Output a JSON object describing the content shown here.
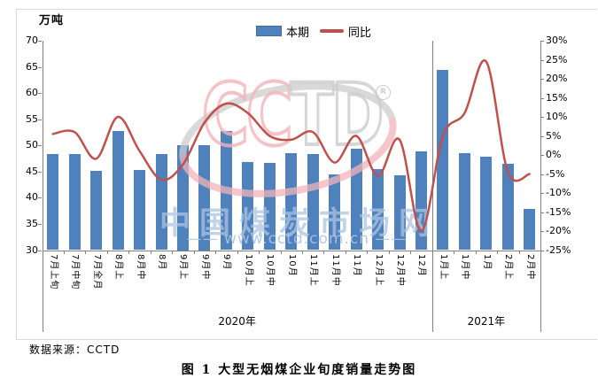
{
  "chart": {
    "y_left_title": "万吨",
    "legend": [
      {
        "label": "本期",
        "type": "bar",
        "color": "#4f81bd"
      },
      {
        "label": "同比",
        "type": "line",
        "color": "#c0504d"
      }
    ],
    "source_note": "数据来源：CCTD",
    "caption": "图 1  大型无烟煤企业旬度销量走势图",
    "watermark": {
      "logo_left": "CC",
      "logo_right": "TD",
      "registered_mark": "R",
      "site_name": "中国煤炭市场网",
      "site_url": "—— www.cctd.com.cn ——",
      "logo_pink": "#f2b4ba",
      "logo_gray": "#cdcdcd",
      "text_blue": "#acc4e2"
    }
  },
  "chart_data": {
    "type": "bar",
    "title": "图 1 大型无烟煤企业旬度销量走势图",
    "categories": [
      "7月上旬",
      "7月中旬",
      "7月全月",
      "8月上",
      "8月中",
      "8月",
      "9月上",
      "9月中",
      "9月",
      "10月上",
      "10月中",
      "10月",
      "11月上",
      "11月中",
      "11月",
      "12月上",
      "12月中",
      "12月",
      "1月上",
      "1月中",
      "1月",
      "2月上",
      "2月中"
    ],
    "year_groups": [
      {
        "label": "2020年",
        "from": 0,
        "to": 17
      },
      {
        "label": "2021年",
        "from": 18,
        "to": 22
      }
    ],
    "series": [
      {
        "name": "本期",
        "type": "bar",
        "axis": "left",
        "color": "#4f81bd",
        "values": [
          48.3,
          48.3,
          45.2,
          52.8,
          45.3,
          48.3,
          50.0,
          50.0,
          52.8,
          46.8,
          46.6,
          48.5,
          48.4,
          44.5,
          49.3,
          45.5,
          44.3,
          48.9,
          64.5,
          48.6,
          47.9,
          46.5,
          37.8
        ]
      },
      {
        "name": "同比",
        "type": "line",
        "axis": "right",
        "color": "#c0504d",
        "values": [
          5.5,
          6,
          -1,
          10,
          1,
          -6.5,
          -2.5,
          8.5,
          13.5,
          11,
          5,
          4,
          6,
          -2,
          5,
          -5.5,
          4,
          -20,
          5,
          11,
          24.5,
          -4.5,
          -5
        ]
      }
    ],
    "y_left": {
      "label": "万吨",
      "min": 30,
      "max": 70,
      "step": 5,
      "ticks": [
        "70",
        "65",
        "60",
        "55",
        "50",
        "45",
        "40",
        "35",
        "30"
      ]
    },
    "y_right": {
      "label": "%",
      "min": -25,
      "max": 30,
      "step": 5,
      "ticks": [
        "30%",
        "25%",
        "20%",
        "15%",
        "10%",
        "5%",
        "0%",
        "-5%",
        "-10%",
        "-15%",
        "-20%",
        "-25%"
      ]
    },
    "grid": false,
    "legend_position": "top-center"
  }
}
